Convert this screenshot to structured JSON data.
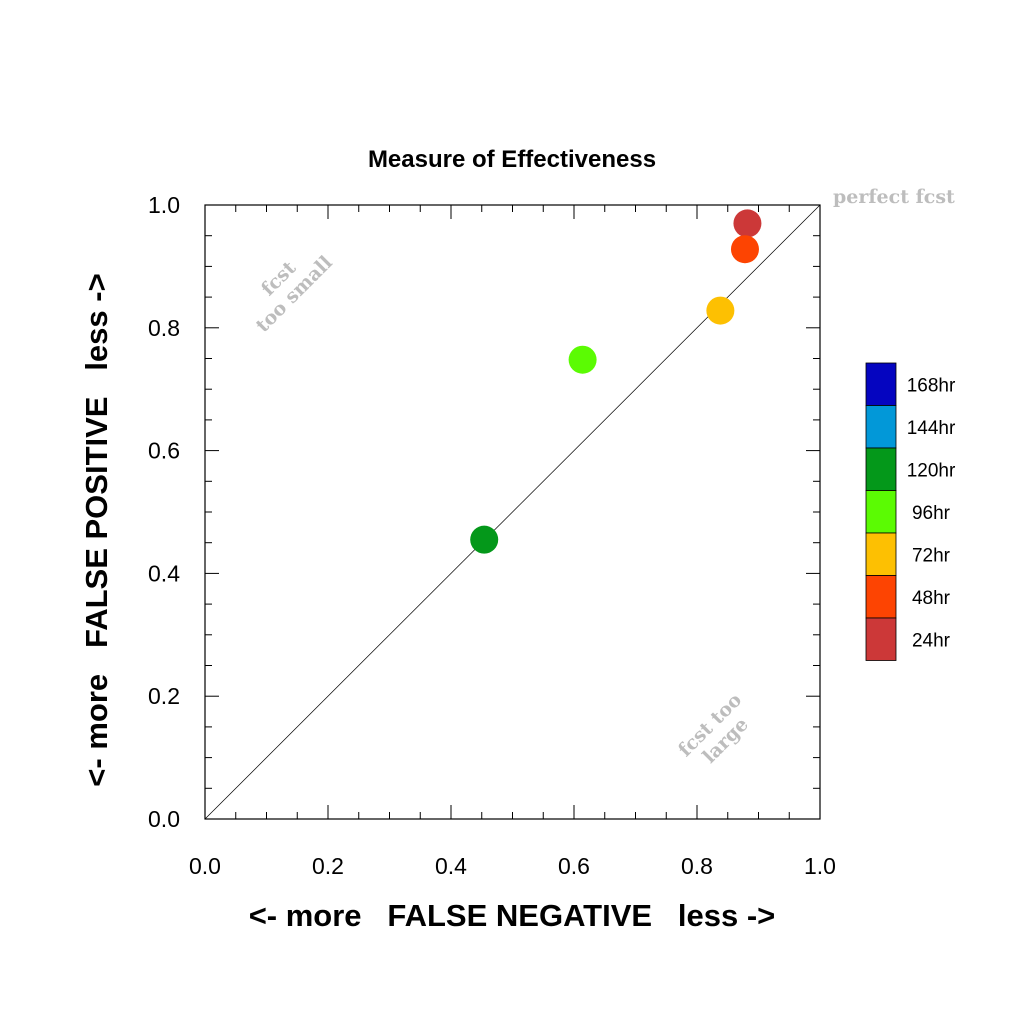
{
  "chart_data": {
    "type": "scatter",
    "title": "Measure of Effectiveness",
    "xlabel": "<- more   FALSE NEGATIVE   less ->",
    "ylabel": "<- more   FALSE POSITIVE   less ->",
    "xlim": [
      0,
      1
    ],
    "ylim": [
      0,
      1
    ],
    "x_ticks": [
      "0.0",
      "0.2",
      "0.4",
      "0.6",
      "0.8",
      "1.0"
    ],
    "y_ticks": [
      "0.0",
      "0.2",
      "0.4",
      "0.6",
      "0.8",
      "1.0"
    ],
    "grid": false,
    "diagonal_line": true,
    "annotations": {
      "perfect": "perfect fcst",
      "small_line1": "fcst",
      "small_line2": "too small",
      "large_line1": "fcst too",
      "large_line2": "large"
    },
    "legend": {
      "placement": "right",
      "entries": [
        {
          "label": "168hr",
          "color": "#0505c0"
        },
        {
          "label": "144hr",
          "color": "#0298d8"
        },
        {
          "label": "120hr",
          "color": "#04981a"
        },
        {
          "label": "96hr",
          "color": "#5bfb03"
        },
        {
          "label": "72hr",
          "color": "#fdc002"
        },
        {
          "label": "48hr",
          "color": "#fd4402"
        },
        {
          "label": "24hr",
          "color": "#cc3838"
        }
      ]
    },
    "points": [
      {
        "lead": "24hr",
        "x": 0.882,
        "y": 0.97,
        "color": "#cc3838"
      },
      {
        "lead": "48hr",
        "x": 0.878,
        "y": 0.928,
        "color": "#fd4402"
      },
      {
        "lead": "72hr",
        "x": 0.838,
        "y": 0.828,
        "color": "#fdc002"
      },
      {
        "lead": "96hr",
        "x": 0.614,
        "y": 0.748,
        "color": "#5bfb03"
      },
      {
        "lead": "120hr",
        "x": 0.454,
        "y": 0.455,
        "color": "#04981a"
      }
    ]
  }
}
